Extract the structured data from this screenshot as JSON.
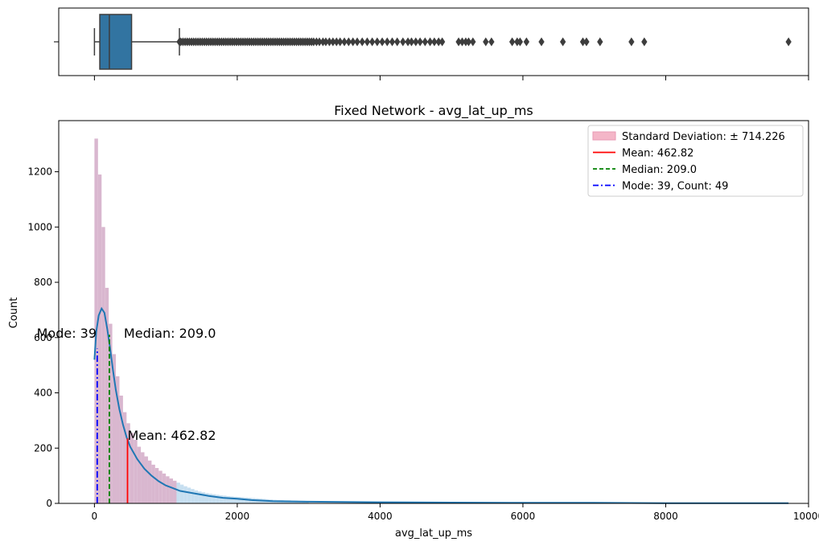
{
  "chart_data": [
    {
      "type": "box",
      "orientation": "horizontal",
      "xlim": [
        -500,
        10000
      ],
      "stats": {
        "min": 0,
        "q1": 75,
        "median": 209,
        "q3": 520,
        "whisker_high": 1190
      },
      "outliers": [
        1190,
        1210,
        1240,
        1270,
        1300,
        1330,
        1360,
        1390,
        1420,
        1450,
        1480,
        1510,
        1540,
        1570,
        1600,
        1630,
        1660,
        1690,
        1720,
        1750,
        1780,
        1810,
        1840,
        1870,
        1900,
        1930,
        1960,
        1990,
        2020,
        2050,
        2080,
        2110,
        2140,
        2170,
        2200,
        2230,
        2260,
        2290,
        2320,
        2350,
        2380,
        2410,
        2440,
        2470,
        2500,
        2530,
        2560,
        2590,
        2620,
        2650,
        2680,
        2710,
        2740,
        2770,
        2800,
        2830,
        2860,
        2890,
        2920,
        2950,
        2980,
        3010,
        3040,
        3070,
        3110,
        3150,
        3200,
        3240,
        3290,
        3340,
        3390,
        3440,
        3500,
        3560,
        3620,
        3680,
        3750,
        3820,
        3890,
        3960,
        4030,
        4100,
        4170,
        4240,
        4320,
        4390,
        4440,
        4500,
        4560,
        4630,
        4700,
        4760,
        4820,
        4870,
        5100,
        5150,
        5200,
        5240,
        5300,
        5480,
        5560,
        5850,
        5920,
        5960,
        6050,
        6260,
        6560,
        6840,
        6890,
        7080,
        7520,
        7700,
        9720
      ],
      "xticks": [
        0,
        2000,
        4000,
        6000,
        8000,
        10000
      ]
    },
    {
      "type": "histogram",
      "title": "Fixed Network - avg_lat_up_ms",
      "xlabel": "avg_lat_up_ms",
      "ylabel": "Count",
      "xlim": [
        -500,
        10000
      ],
      "ylim": [
        0,
        1385
      ],
      "xticks": [
        0,
        2000,
        4000,
        6000,
        8000,
        10000
      ],
      "yticks": [
        0,
        200,
        400,
        600,
        800,
        1000,
        1200
      ],
      "bin_width": 50,
      "bins_start": 0,
      "bin_counts": [
        1320,
        1190,
        1000,
        780,
        650,
        540,
        460,
        390,
        330,
        290,
        255,
        230,
        205,
        185,
        170,
        155,
        140,
        128,
        118,
        108,
        98,
        90,
        82,
        75,
        68,
        62,
        57,
        52,
        47,
        43,
        40,
        37,
        35,
        33,
        31,
        29,
        28,
        26,
        25,
        24,
        23,
        22,
        21,
        20,
        19,
        18,
        17,
        16,
        15,
        14,
        13,
        12,
        12,
        11,
        11,
        10,
        10,
        9,
        9,
        8
      ],
      "kde": {
        "x": [
          0,
          25,
          60,
          100,
          140,
          180,
          220,
          260,
          300,
          350,
          400,
          450,
          500,
          600,
          700,
          800,
          900,
          1000,
          1100,
          1200,
          1400,
          1600,
          1800,
          2000,
          2200,
          2500,
          3000,
          4000,
          5000,
          6000,
          7000,
          8000,
          9000,
          9720
        ],
        "y": [
          520,
          620,
          680,
          705,
          690,
          630,
          560,
          480,
          410,
          340,
          285,
          240,
          205,
          160,
          125,
          100,
          80,
          65,
          55,
          45,
          36,
          27,
          20,
          17,
          12,
          8,
          6,
          4,
          3,
          2,
          2,
          1,
          1,
          1
        ]
      },
      "std_band": {
        "from": 0,
        "to": 1177.05
      },
      "mean": {
        "value": 462.82,
        "height": 235,
        "color": "#ff0000"
      },
      "median": {
        "value": 209.0,
        "height": 610,
        "color": "#008000"
      },
      "mode": {
        "value": 39,
        "height": 560,
        "color": "#0000ff"
      },
      "annotations": [
        {
          "text": "Mode: 39",
          "x": 39,
          "y": 600
        },
        {
          "text": "Median: 209.0",
          "x": 209.0,
          "y": 600
        },
        {
          "text": "Mean: 462.82",
          "x": 462.82,
          "y": 230
        }
      ],
      "legend": {
        "placement": "top-right",
        "entries": [
          {
            "label": "Standard Deviation: ± 714.226",
            "kind": "patch",
            "color": "#f4b6c8"
          },
          {
            "label": "Mean: 462.82",
            "kind": "solid",
            "color": "#ff0000"
          },
          {
            "label": "Median: 209.0",
            "kind": "dashed",
            "color": "#008000"
          },
          {
            "label": "Mode: 39, Count: 49",
            "kind": "dashdot",
            "color": "#0000ff"
          }
        ]
      },
      "colors": {
        "bars": "#c7dff0",
        "kde": "#1f77b4",
        "band": "#e8a9bf"
      }
    }
  ]
}
